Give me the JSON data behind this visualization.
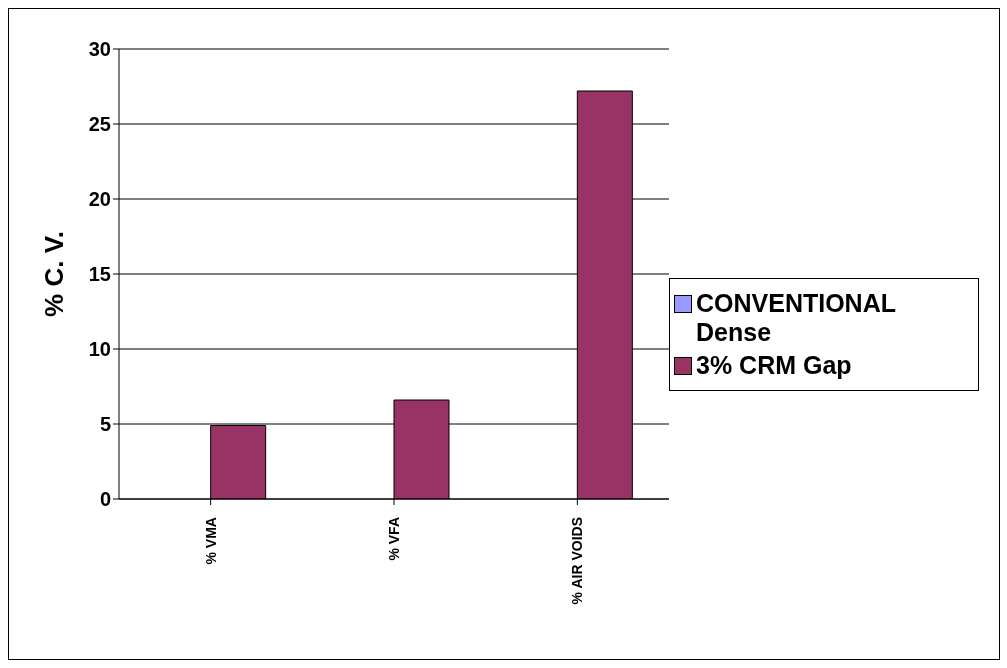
{
  "chart_data": {
    "type": "bar",
    "ylabel": "% C. V.",
    "categories": [
      "% VMA",
      "% VFA",
      "% AIR VOIDS"
    ],
    "series": [
      {
        "name": "CONVENTIONAL Dense",
        "color": "#9999ff",
        "values": [
          null,
          null,
          null
        ]
      },
      {
        "name": "3% CRM Gap",
        "color": "#993366",
        "values": [
          4.9,
          6.6,
          27.2
        ]
      }
    ],
    "ylim": [
      0,
      30
    ],
    "yticks": [
      0,
      5,
      10,
      15,
      20,
      25,
      30
    ],
    "grid": "y",
    "legend": "right"
  }
}
